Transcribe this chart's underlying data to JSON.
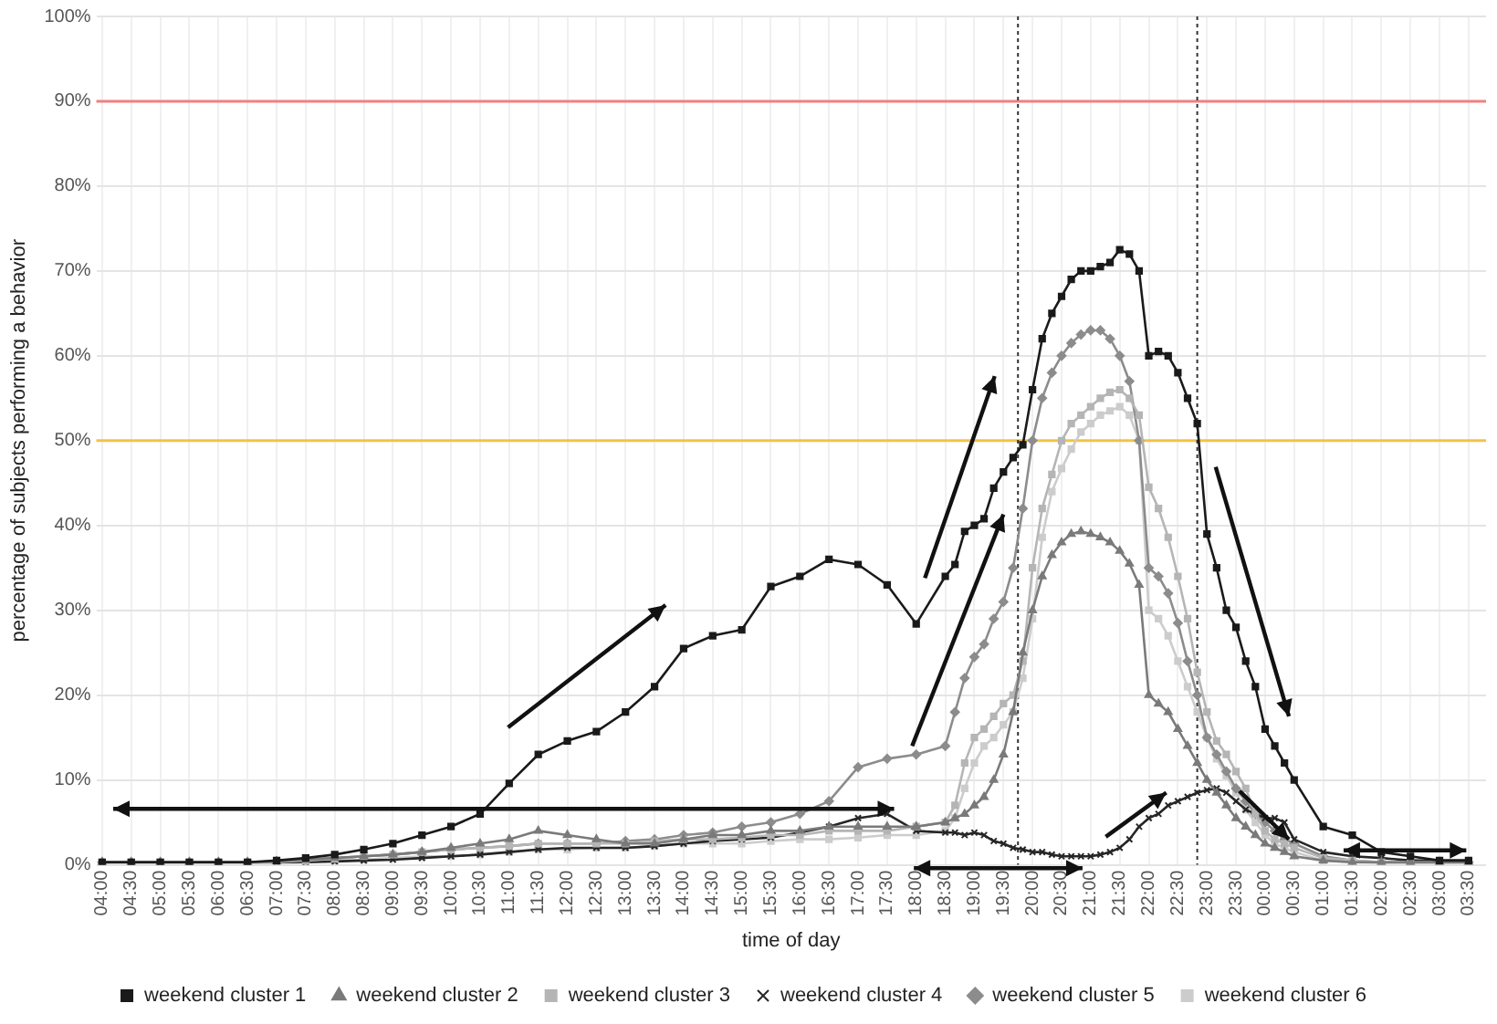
{
  "chart_data": {
    "type": "line",
    "xlabel": "time of day",
    "ylabel": "percentage of subjects performing a behavior",
    "x": [
      "2000-01-01T04:00",
      "2000-01-01T04:30",
      "2000-01-01T05:00",
      "2000-01-01T05:30",
      "2000-01-01T06:00",
      "2000-01-01T06:30",
      "2000-01-01T07:00",
      "2000-01-01T07:30",
      "2000-01-01T08:00",
      "2000-01-01T08:30",
      "2000-01-01T09:00",
      "2000-01-01T09:30",
      "2000-01-01T10:00",
      "2000-01-01T10:30",
      "2000-01-01T11:00",
      "2000-01-01T11:30",
      "2000-01-01T12:00",
      "2000-01-01T12:30",
      "2000-01-01T13:00",
      "2000-01-01T13:30",
      "2000-01-01T14:00",
      "2000-01-01T14:30",
      "2000-01-01T15:00",
      "2000-01-01T15:30",
      "2000-01-01T16:00",
      "2000-01-01T16:30",
      "2000-01-01T17:00",
      "2000-01-01T17:30",
      "2000-01-01T18:00",
      "2000-01-01T18:30",
      "2000-01-01T18:40",
      "2000-01-01T18:50",
      "2000-01-01T19:00",
      "2000-01-01T19:10",
      "2000-01-01T19:20",
      "2000-01-01T19:30",
      "2000-01-01T19:40",
      "2000-01-01T19:50",
      "2000-01-01T20:00",
      "2000-01-01T20:10",
      "2000-01-01T20:20",
      "2000-01-01T20:30",
      "2000-01-01T20:40",
      "2000-01-01T20:50",
      "2000-01-01T21:00",
      "2000-01-01T21:10",
      "2000-01-01T21:20",
      "2000-01-01T21:30",
      "2000-01-01T21:40",
      "2000-01-01T21:50",
      "2000-01-01T22:00",
      "2000-01-01T22:10",
      "2000-01-01T22:20",
      "2000-01-01T22:30",
      "2000-01-01T22:40",
      "2000-01-01T22:50",
      "2000-01-01T23:00",
      "2000-01-01T23:10",
      "2000-01-01T23:20",
      "2000-01-01T23:30",
      "2000-01-01T23:40",
      "2000-01-01T23:50",
      "2000-01-02T00:00",
      "2000-01-02T00:10",
      "2000-01-02T00:20",
      "2000-01-02T00:30",
      "2000-01-02T01:00",
      "2000-01-02T01:30",
      "2000-01-02T02:00",
      "2000-01-02T02:30",
      "2000-01-02T03:00",
      "2000-01-02T03:30"
    ],
    "xlim": [
      "2000-01-01T03:54",
      "2000-01-02T03:48"
    ],
    "xticks": [
      {
        "value": "2000-01-01T04:00",
        "label": "04:00"
      },
      {
        "value": "2000-01-01T04:30",
        "label": "04:30"
      },
      {
        "value": "2000-01-01T05:00",
        "label": "05:00"
      },
      {
        "value": "2000-01-01T05:30",
        "label": "05:30"
      },
      {
        "value": "2000-01-01T06:00",
        "label": "06:00"
      },
      {
        "value": "2000-01-01T06:30",
        "label": "06:30"
      },
      {
        "value": "2000-01-01T07:00",
        "label": "07:00"
      },
      {
        "value": "2000-01-01T07:30",
        "label": "07:30"
      },
      {
        "value": "2000-01-01T08:00",
        "label": "08:00"
      },
      {
        "value": "2000-01-01T08:30",
        "label": "08:30"
      },
      {
        "value": "2000-01-01T09:00",
        "label": "09:00"
      },
      {
        "value": "2000-01-01T09:30",
        "label": "09:30"
      },
      {
        "value": "2000-01-01T10:00",
        "label": "10:00"
      },
      {
        "value": "2000-01-01T10:30",
        "label": "10:30"
      },
      {
        "value": "2000-01-01T11:00",
        "label": "11:00"
      },
      {
        "value": "2000-01-01T11:30",
        "label": "11:30"
      },
      {
        "value": "2000-01-01T12:00",
        "label": "12:00"
      },
      {
        "value": "2000-01-01T12:30",
        "label": "12:30"
      },
      {
        "value": "2000-01-01T13:00",
        "label": "13:00"
      },
      {
        "value": "2000-01-01T13:30",
        "label": "13:30"
      },
      {
        "value": "2000-01-01T14:00",
        "label": "14:00"
      },
      {
        "value": "2000-01-01T14:30",
        "label": "14:30"
      },
      {
        "value": "2000-01-01T15:00",
        "label": "15:00"
      },
      {
        "value": "2000-01-01T15:30",
        "label": "15:30"
      },
      {
        "value": "2000-01-01T16:00",
        "label": "16:00"
      },
      {
        "value": "2000-01-01T16:30",
        "label": "16:30"
      },
      {
        "value": "2000-01-01T17:00",
        "label": "17:00"
      },
      {
        "value": "2000-01-01T17:30",
        "label": "17:30"
      },
      {
        "value": "2000-01-01T18:00",
        "label": "18:00"
      },
      {
        "value": "2000-01-01T18:30",
        "label": "18:30"
      },
      {
        "value": "2000-01-01T19:00",
        "label": "19:00"
      },
      {
        "value": "2000-01-01T19:30",
        "label": "19:30"
      },
      {
        "value": "2000-01-01T20:00",
        "label": "20:00"
      },
      {
        "value": "2000-01-01T20:30",
        "label": "20:30"
      },
      {
        "value": "2000-01-01T21:00",
        "label": "21:00"
      },
      {
        "value": "2000-01-01T21:30",
        "label": "21:30"
      },
      {
        "value": "2000-01-01T22:00",
        "label": "22:00"
      },
      {
        "value": "2000-01-01T22:30",
        "label": "22:30"
      },
      {
        "value": "2000-01-01T23:00",
        "label": "23:00"
      },
      {
        "value": "2000-01-01T23:30",
        "label": "23:30"
      },
      {
        "value": "2000-01-02T00:00",
        "label": "00:00"
      },
      {
        "value": "2000-01-02T00:30",
        "label": "00:30"
      },
      {
        "value": "2000-01-02T01:00",
        "label": "01:00"
      },
      {
        "value": "2000-01-02T01:30",
        "label": "01:30"
      },
      {
        "value": "2000-01-02T02:00",
        "label": "02:00"
      },
      {
        "value": "2000-01-02T02:30",
        "label": "02:30"
      },
      {
        "value": "2000-01-02T03:00",
        "label": "03:00"
      },
      {
        "value": "2000-01-02T03:30",
        "label": "03:30"
      }
    ],
    "ylim": [
      0,
      100
    ],
    "yticks": [
      {
        "value": 0,
        "label": "0%"
      },
      {
        "value": 10,
        "label": "10%"
      },
      {
        "value": 20,
        "label": "20%"
      },
      {
        "value": 30,
        "label": "30%"
      },
      {
        "value": 40,
        "label": "40%"
      },
      {
        "value": 50,
        "label": "50%"
      },
      {
        "value": 60,
        "label": "60%"
      },
      {
        "value": 70,
        "label": "70%"
      },
      {
        "value": 80,
        "label": "80%"
      },
      {
        "value": 90,
        "label": "90%"
      },
      {
        "value": 100,
        "label": "100%"
      }
    ],
    "grid": true,
    "legend": "bottom",
    "series": [
      {
        "name": "weekend cluster 1",
        "color": "#1a1a1a",
        "marker": "square",
        "values": [
          0.3,
          0.3,
          0.3,
          0.3,
          0.3,
          0.3,
          0.5,
          0.8,
          1.2,
          1.8,
          2.5,
          3.5,
          4.5,
          6,
          9.6,
          13,
          14.6,
          15.7,
          18,
          21,
          25.5,
          27,
          27.7,
          32.8,
          34,
          36,
          35.4,
          33,
          28.4,
          34,
          35.4,
          39.3,
          40,
          40.8,
          44.4,
          46.3,
          48,
          49.5,
          56,
          62,
          65,
          67,
          69,
          70,
          70,
          70.5,
          71,
          72.5,
          72,
          70,
          60,
          60.5,
          60,
          58,
          55,
          52,
          39,
          35,
          30,
          28,
          24,
          21,
          16,
          14,
          12,
          10,
          4.5,
          3.5,
          1.5,
          1,
          0.5,
          0.5
        ]
      },
      {
        "name": "weekend cluster 2",
        "color": "#7a7a7a",
        "marker": "triangle",
        "values": [
          0.3,
          0.3,
          0.3,
          0.3,
          0.3,
          0.3,
          0.4,
          0.6,
          0.8,
          1,
          1.2,
          1.5,
          2,
          2.5,
          3,
          4,
          3.5,
          3,
          2.5,
          2.5,
          3,
          3.5,
          3.5,
          4,
          4,
          4.5,
          4.5,
          4.5,
          4.5,
          5,
          5.5,
          6,
          7,
          8,
          10,
          13,
          18,
          25,
          30,
          34,
          36.5,
          38,
          39,
          39.3,
          39,
          38.6,
          38,
          37,
          35.5,
          33,
          20,
          19,
          18,
          16,
          14,
          12,
          10,
          8.5,
          7,
          5.5,
          4.5,
          3.5,
          2.5,
          2,
          1.5,
          1,
          0.5,
          0.3,
          0.3,
          0.3,
          0.3,
          0.3
        ]
      },
      {
        "name": "weekend cluster 3",
        "color": "#b5b5b5",
        "marker": "square",
        "values": [
          0.3,
          0.3,
          0.3,
          0.3,
          0.3,
          0.3,
          0.3,
          0.5,
          0.7,
          1,
          1.2,
          1.5,
          1.8,
          2,
          2.2,
          2.5,
          2.5,
          2.5,
          2.5,
          2.8,
          3,
          3,
          3.2,
          3.5,
          3.5,
          4,
          4,
          4,
          4.5,
          5,
          7,
          12,
          15,
          16,
          17.5,
          19,
          20,
          24,
          35,
          42,
          46,
          50,
          52,
          53,
          54,
          55,
          55.7,
          56,
          55,
          53,
          44.5,
          42,
          38.6,
          34,
          29,
          22.7,
          18,
          14.6,
          13,
          11,
          9,
          6,
          4,
          3,
          2.5,
          2,
          0.8,
          0.5,
          0.3,
          0.3,
          0.3,
          0.3
        ]
      },
      {
        "name": "weekend cluster 4",
        "color": "#262626",
        "marker": "cross",
        "values": [
          0.3,
          0.3,
          0.3,
          0.3,
          0.3,
          0.3,
          0.3,
          0.3,
          0.4,
          0.5,
          0.6,
          0.8,
          1,
          1.2,
          1.5,
          1.8,
          2,
          2,
          2,
          2.2,
          2.5,
          2.8,
          3,
          3.2,
          3.8,
          4.5,
          5.5,
          6,
          4,
          3.8,
          3.8,
          3.5,
          3.8,
          3.5,
          2.8,
          2.5,
          2,
          1.8,
          1.5,
          1.5,
          1.2,
          1,
          1,
          1,
          1,
          1.2,
          1.5,
          2,
          3,
          4.5,
          5.5,
          6,
          7,
          7.5,
          8,
          8.5,
          8.8,
          9,
          8.5,
          7.5,
          6.5,
          6,
          5.5,
          5.5,
          5,
          3,
          1.5,
          1,
          0.8,
          0.5,
          0.5,
          0.5
        ]
      },
      {
        "name": "weekend cluster 5",
        "color": "#8c8c8c",
        "marker": "diamond",
        "values": [
          0.3,
          0.3,
          0.3,
          0.3,
          0.3,
          0.3,
          0.4,
          0.6,
          0.8,
          1,
          1.2,
          1.5,
          1.8,
          2,
          2.2,
          2.5,
          2.5,
          2.5,
          2.8,
          3,
          3.5,
          3.8,
          4.5,
          5,
          6,
          7.5,
          11.5,
          12.5,
          13,
          14,
          18,
          22,
          24.5,
          26,
          29,
          31,
          35,
          42,
          50,
          55,
          58,
          60,
          61.5,
          62.5,
          63,
          63,
          62,
          60,
          57,
          50,
          35,
          34,
          32,
          28.5,
          24,
          20,
          15,
          13,
          11,
          9,
          7.5,
          6,
          5,
          4,
          3,
          2.5,
          1,
          0.5,
          0.3,
          0.3,
          0.3,
          0.3
        ]
      },
      {
        "name": "weekend cluster 6",
        "color": "#cccccc",
        "marker": "square",
        "values": [
          0.2,
          0.2,
          0.2,
          0.2,
          0.2,
          0.2,
          0.2,
          0.3,
          0.5,
          0.6,
          0.8,
          1,
          1,
          1.2,
          1.5,
          1.8,
          1.8,
          2,
          2,
          2.2,
          2.5,
          2.5,
          2.5,
          2.8,
          3,
          3,
          3.2,
          3.5,
          3.5,
          4,
          5.5,
          9,
          12,
          14,
          15,
          16.5,
          18,
          22,
          29,
          38.6,
          44,
          46.7,
          49,
          51,
          52,
          53,
          53.5,
          54,
          53,
          50,
          30,
          29,
          27,
          24,
          21,
          18,
          15,
          12.5,
          10.5,
          8.5,
          6.5,
          5,
          3.5,
          2.5,
          2,
          1.5,
          0.5,
          0.3,
          0.2,
          0.2,
          0.2,
          0.2
        ]
      }
    ],
    "ref_lines": [
      {
        "axis": "y",
        "value": 90,
        "color": "#f08080",
        "line_style": "solid"
      },
      {
        "axis": "y",
        "value": 50,
        "color": "#f5c242",
        "line_style": "solid"
      },
      {
        "axis": "x",
        "value": "2000-01-01T19:45",
        "color": "#333333",
        "line_style": "dotted"
      },
      {
        "axis": "x",
        "value": "2000-01-01T22:50",
        "color": "#333333",
        "line_style": "dotted"
      }
    ]
  }
}
